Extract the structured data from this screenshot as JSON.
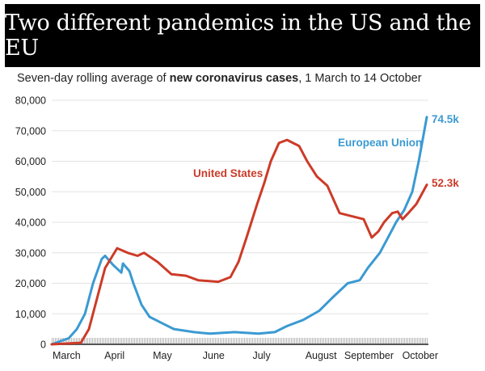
{
  "header": {
    "title": "Two different pandemics in the US and the EU",
    "subtitle_pre": "Seven-day rolling average of ",
    "subtitle_bold": "new coronavirus cases",
    "subtitle_post": ", 1 March to 14 October"
  },
  "chart_data": {
    "type": "line",
    "title": "Two different pandemics in the US and the EU",
    "subtitle": "Seven-day rolling average of new coronavirus cases, 1 March to 14 October",
    "xlabel": "",
    "ylabel": "",
    "x_unit": "days since 1 March",
    "xlim": [
      0,
      227
    ],
    "ylim": [
      0,
      80000
    ],
    "grid": true,
    "yticks": [
      0,
      10000,
      20000,
      30000,
      40000,
      50000,
      60000,
      70000,
      80000
    ],
    "ytick_labels": [
      "0",
      "10,000",
      "20,000",
      "30,000",
      "40,000",
      "50,000",
      "60,000",
      "70,000",
      "80,000"
    ],
    "xticks": [
      {
        "label": "March",
        "day": 9
      },
      {
        "label": "April",
        "day": 38
      },
      {
        "label": "May",
        "day": 67
      },
      {
        "label": "June",
        "day": 98
      },
      {
        "label": "July",
        "day": 127
      },
      {
        "label": "August",
        "day": 163
      },
      {
        "label": "September",
        "day": 192
      },
      {
        "label": "October",
        "day": 223
      }
    ],
    "series": [
      {
        "name": "United States",
        "color": "#cc3b28",
        "end_label": "52.3k",
        "x": [
          0,
          17.6,
          22.5,
          27.4,
          32.3,
          39.6,
          46,
          51.9,
          55.8,
          64.1,
          72.4,
          81.2,
          88.6,
          100.8,
          108.1,
          113,
          117.9,
          124.3,
          128.7,
          132.6,
          137.5,
          142.4,
          149.7,
          154.6,
          160.5,
          166.8,
          174.2,
          181.5,
          188.8,
          193.7,
          197.7,
          201.1,
          206,
          209.4,
          212.3,
          215.8,
          220.7,
          227
        ],
        "values": [
          0,
          500,
          5000,
          15000,
          25000,
          31500,
          30000,
          29000,
          30000,
          27000,
          23000,
          22500,
          21000,
          20500,
          22000,
          27000,
          35000,
          46000,
          53000,
          60000,
          66000,
          67000,
          65000,
          60000,
          55000,
          52000,
          43000,
          42000,
          41000,
          35000,
          37000,
          40000,
          43000,
          43500,
          41000,
          43000,
          46000,
          52300
        ]
      },
      {
        "name": "European Union",
        "color": "#3b9ad2",
        "end_label": "74.5k",
        "x": [
          0,
          10.3,
          15.2,
          20.1,
          25,
          30.3,
          32.3,
          37.2,
          42.1,
          43.1,
          47,
          49.4,
          54.3,
          59.2,
          66.5,
          73.9,
          86.1,
          95.9,
          110.6,
          125.2,
          135,
          142.4,
          152.2,
          161.9,
          169.3,
          179.1,
          186.4,
          191.3,
          198.6,
          203.5,
          208.4,
          213.3,
          218.2,
          222.1,
          227
        ],
        "values": [
          0,
          2000,
          5000,
          10000,
          20000,
          28000,
          29000,
          26000,
          23500,
          26500,
          24000,
          20000,
          13000,
          9000,
          7000,
          5000,
          4000,
          3500,
          4000,
          3500,
          4000,
          6000,
          8000,
          11000,
          15000,
          20000,
          21000,
          25000,
          30000,
          35000,
          40000,
          44000,
          50000,
          60000,
          74500
        ]
      }
    ]
  }
}
